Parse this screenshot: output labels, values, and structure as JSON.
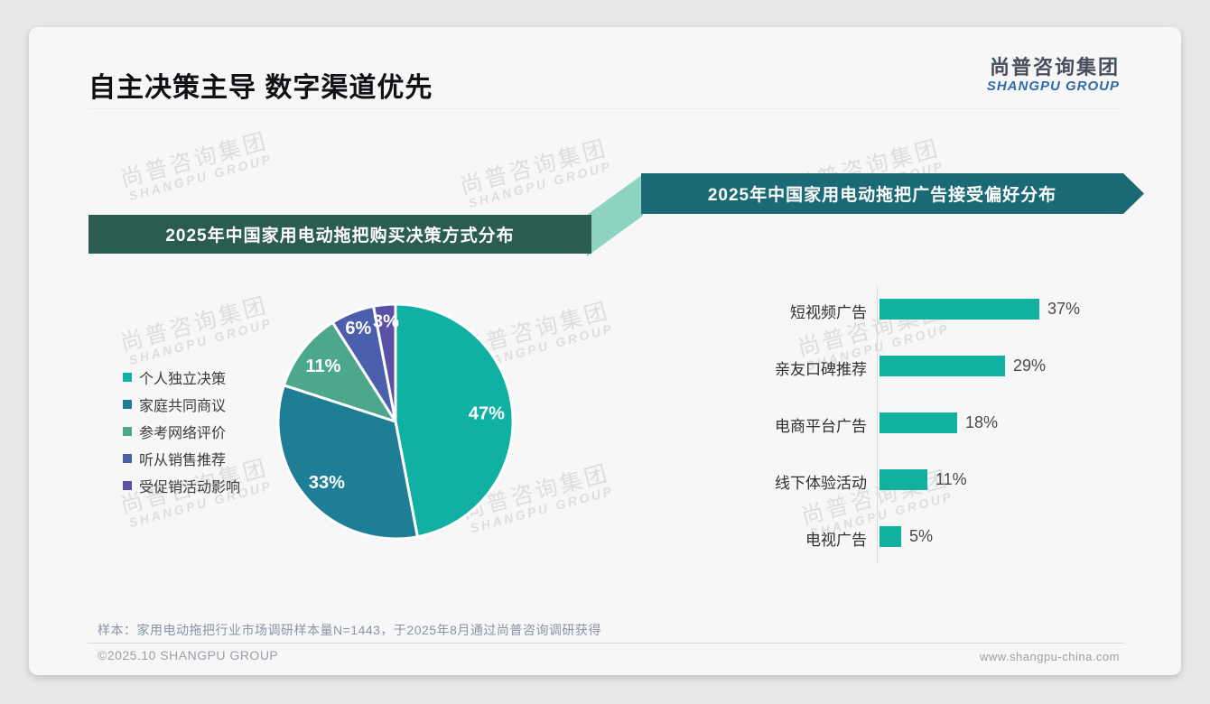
{
  "page": {
    "title": "自主决策主导 数字渠道优先",
    "logo": {
      "cn": "尚普咨询集团",
      "en": "SHANGPU GROUP"
    },
    "watermark": {
      "line1": "尚普咨询集团",
      "line2": "SHANGPU GROUP"
    },
    "note": "样本：家用电动拖把行业市场调研样本量N=1443，于2025年8月通过尚普咨询调研获得",
    "footer_left": "©2025.10 SHANGPU GROUP",
    "footer_right": "www.shangpu-china.com"
  },
  "colors": {
    "banner_left_bg": "#2b5c50",
    "banner_right_bg": "#1a6a76",
    "connector": "#8ed3bf",
    "card_bg": "#f7f7f8",
    "page_bg": "#e7e8e9",
    "bar": "#12b0a0"
  },
  "chart_data": [
    {
      "type": "pie",
      "title": "2025年中国家用电动拖把购买决策方式分布",
      "labels": [
        "个人独立决策",
        "家庭共同商议",
        "参考网络评价",
        "听从销售推荐",
        "受促销活动影响"
      ],
      "values": [
        47,
        33,
        11,
        6,
        3
      ],
      "unit": "%",
      "value_labels": [
        "47%",
        "33%",
        "11%",
        "6%",
        "3%"
      ],
      "colors": [
        "#10b1a2",
        "#1e7e96",
        "#4ca78c",
        "#4c5fad",
        "#5a50a6"
      ],
      "legend_position": "left",
      "start_angle": "12-o'clock, clockwise",
      "slice_border": "#ffffff"
    },
    {
      "type": "bar",
      "title": "2025年中国家用电动拖把广告接受偏好分布",
      "orientation": "horizontal",
      "categories": [
        "短视频广告",
        "亲友口碑推荐",
        "电商平台广告",
        "线下体验活动",
        "电视广告"
      ],
      "values": [
        37,
        29,
        18,
        11,
        5
      ],
      "unit": "%",
      "value_labels": [
        "37%",
        "29%",
        "18%",
        "11%",
        "5%"
      ],
      "bar_color": "#12b0a0",
      "xlim": [
        0,
        40
      ],
      "grid": false,
      "value_label_position": "right-of-bar"
    }
  ]
}
